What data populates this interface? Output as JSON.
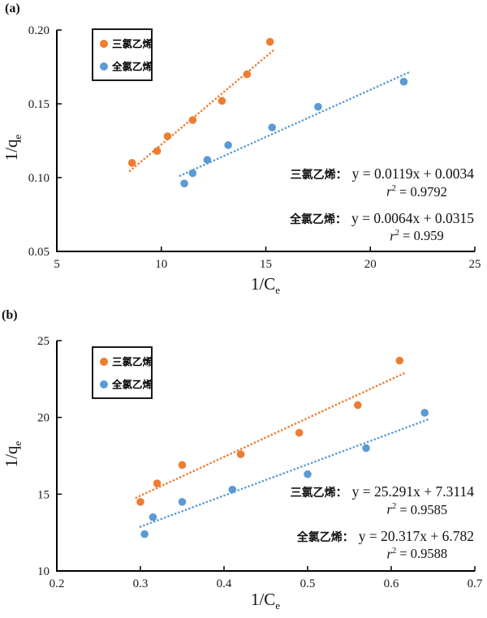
{
  "page": {
    "background": "#ffffff"
  },
  "panels": [
    {
      "tag": "(a)",
      "xlabel": {
        "main": "1/C",
        "sub": "e"
      },
      "ylabel": {
        "main": "1/q",
        "sub": "e"
      }
    },
    {
      "tag": "(b)",
      "xlabel": {
        "main": "1/C",
        "sub": "e"
      },
      "ylabel": {
        "main": "1/q",
        "sub": "e"
      }
    }
  ],
  "chart_data": [
    {
      "type": "scatter",
      "panel": "(a)",
      "xlabel": "1/Ce",
      "ylabel": "1/qe",
      "xlim": [
        5,
        25
      ],
      "ylim": [
        0.05,
        0.2
      ],
      "x_ticks": [
        "5",
        "10",
        "15",
        "20",
        "25"
      ],
      "x_tick_values": [
        5,
        10,
        15,
        20,
        25
      ],
      "y_ticks": [
        "0.05",
        "0.10",
        "0.15",
        "0.20"
      ],
      "y_tick_values": [
        0.05,
        0.1,
        0.15,
        0.2
      ],
      "grid": false,
      "legend_position": "top-left",
      "series": [
        {
          "name": "三氯乙烯",
          "color": "#ED7D31",
          "x": [
            8.6,
            9.8,
            10.3,
            11.5,
            12.9,
            14.1,
            15.2
          ],
          "y": [
            0.11,
            0.118,
            0.128,
            0.139,
            0.152,
            0.17,
            0.192
          ],
          "trend": {
            "style": "dotted",
            "slope": 0.0119,
            "intercept": 0.0034,
            "x_start": 8.5,
            "x_end": 15.4
          }
        },
        {
          "name": "全氯乙烯",
          "color": "#5B9BD5",
          "x": [
            11.1,
            11.5,
            12.2,
            13.2,
            15.3,
            17.5,
            21.6
          ],
          "y": [
            0.096,
            0.103,
            0.112,
            0.122,
            0.134,
            0.148,
            0.165
          ],
          "trend": {
            "style": "dotted",
            "slope": 0.0064,
            "intercept": 0.0315,
            "x_start": 10.9,
            "x_end": 21.9
          }
        }
      ],
      "annotations": [
        {
          "label": "三氯乙烯：",
          "equation": "y = 0.0119x + 0.0034",
          "r2_var": "r",
          "r2_exp": "2",
          "r2_text": "= 0.9792"
        },
        {
          "label": "全氯乙烯：",
          "equation": "y = 0.0064x + 0.0315",
          "r2_var": "r",
          "r2_exp": "2",
          "r2_text": "= 0.959"
        }
      ]
    },
    {
      "type": "scatter",
      "panel": "(b)",
      "xlabel": "1/Ce",
      "ylabel": "1/qe",
      "xlim": [
        0.2,
        0.7
      ],
      "ylim": [
        10,
        25
      ],
      "x_ticks": [
        "0.2",
        "0.3",
        "0.4",
        "0.5",
        "0.6",
        "0.7"
      ],
      "x_tick_values": [
        0.2,
        0.3,
        0.4,
        0.5,
        0.6,
        0.7
      ],
      "y_ticks": [
        "10",
        "15",
        "20",
        "25"
      ],
      "y_tick_values": [
        10,
        15,
        20,
        25
      ],
      "grid": false,
      "legend_position": "top-left",
      "series": [
        {
          "name": "三氯乙烯",
          "color": "#ED7D31",
          "x": [
            0.3,
            0.32,
            0.35,
            0.42,
            0.49,
            0.56,
            0.61
          ],
          "y": [
            14.5,
            15.7,
            16.9,
            17.6,
            19.0,
            20.8,
            23.7
          ],
          "trend": {
            "style": "dotted",
            "slope": 25.291,
            "intercept": 7.3114,
            "x_start": 0.295,
            "x_end": 0.615
          }
        },
        {
          "name": "全氯乙烯",
          "color": "#5B9BD5",
          "x": [
            0.305,
            0.315,
            0.35,
            0.41,
            0.5,
            0.57,
            0.64
          ],
          "y": [
            12.4,
            13.5,
            14.5,
            15.3,
            16.3,
            18.0,
            20.3
          ],
          "trend": {
            "style": "dotted",
            "slope": 20.317,
            "intercept": 6.782,
            "x_start": 0.3,
            "x_end": 0.645
          }
        }
      ],
      "annotations": [
        {
          "label": "三氯乙烯：",
          "equation": "y = 25.291x + 7.3114",
          "r2_var": "r",
          "r2_exp": "2",
          "r2_text": "= 0.9585"
        },
        {
          "label": "全氯乙烯：",
          "equation": "y = 20.317x + 6.782",
          "r2_var": "r",
          "r2_exp": "2",
          "r2_text": "= 0.9588"
        }
      ]
    }
  ]
}
